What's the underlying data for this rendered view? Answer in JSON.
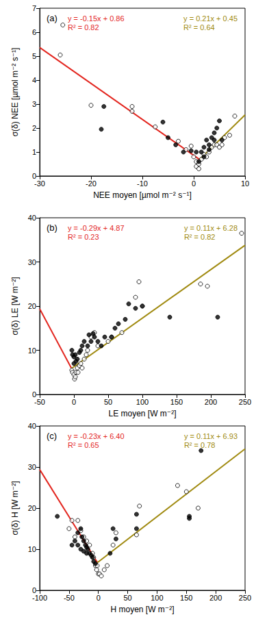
{
  "chart_data": [
    {
      "type": "scatter",
      "title": "(a)",
      "xlabel": "NEE moyen [µmol m⁻² s⁻¹]",
      "ylabel": "σ(δ) NEE [µmol m⁻² s⁻¹]",
      "xlim": [
        -30,
        10
      ],
      "xticks": [
        -30,
        -20,
        -10,
        0,
        10
      ],
      "ylim": [
        0,
        7
      ],
      "yticks": [
        0,
        1,
        2,
        3,
        4,
        5,
        6,
        7
      ],
      "grid": false,
      "annotations": [
        {
          "text": "y = -0.15x + 0.86\nR² = 0.82",
          "color": "#e3261f"
        },
        {
          "text": "y = 0.21x + 0.45\nR² = 0.64",
          "color": "#a08a10"
        }
      ],
      "series": [
        {
          "type": "scatter",
          "marker": "open_circle",
          "color": "#000000",
          "x": [
            -25.5,
            -26,
            -20,
            -12,
            -12,
            -7.5,
            -3,
            -1.5,
            -0.5,
            0,
            0.5,
            0.5,
            1,
            1.5,
            2,
            2.5,
            3,
            3.5,
            4,
            4.5,
            5,
            5.5,
            6,
            7,
            8,
            1
          ],
          "values": [
            6.3,
            5.05,
            2.95,
            2.9,
            2.7,
            2.05,
            1.45,
            1.1,
            1.25,
            0.8,
            0.6,
            0.4,
            0.5,
            0.7,
            0.9,
            0.8,
            1.0,
            1.2,
            1.3,
            1.3,
            1.2,
            1.3,
            1.6,
            1.7,
            2.5,
            0.3
          ]
        },
        {
          "type": "scatter",
          "marker": "filled_circle",
          "color": "#000000",
          "x": [
            -18,
            -17.5,
            -6,
            -5,
            -3.5,
            -2,
            -0.5,
            0.5,
            1,
            1.5,
            2,
            2.5,
            3,
            3.5,
            4,
            4.5,
            5,
            2,
            3,
            4,
            5.5
          ],
          "values": [
            1.95,
            2.9,
            2.25,
            1.6,
            1.3,
            1.0,
            1.05,
            1.0,
            0.6,
            1.0,
            1.2,
            1.5,
            1.3,
            1.6,
            1.8,
            2.0,
            2.3,
            0.8,
            1.1,
            1.5,
            1.5
          ]
        },
        {
          "type": "line",
          "color": "#e3261f",
          "x": [
            -30,
            1.14
          ],
          "values": [
            5.36,
            0.69
          ]
        },
        {
          "type": "line",
          "color": "#a08a10",
          "x": [
            1.14,
            10
          ],
          "values": [
            0.69,
            2.55
          ]
        }
      ]
    },
    {
      "type": "scatter",
      "title": "(b)",
      "xlabel": "LE moyen [W m⁻²]",
      "ylabel": "σ(δ) LE [W m⁻²]",
      "xlim": [
        -50,
        250
      ],
      "xticks": [
        -50,
        0,
        50,
        100,
        150,
        200,
        250
      ],
      "ylim": [
        0,
        40
      ],
      "yticks": [
        0,
        10,
        20,
        30,
        40
      ],
      "grid": false,
      "annotations": [
        {
          "text": "y = -0.29x + 4.87\nR² = 0.23",
          "color": "#e3261f"
        },
        {
          "text": "y = 0.11x + 6.28\nR² = 0.82",
          "color": "#a08a10"
        }
      ],
      "series": [
        {
          "type": "scatter",
          "marker": "open_circle",
          "color": "#000000",
          "x": [
            -3,
            -2,
            0,
            1,
            2,
            3,
            5,
            8,
            10,
            15,
            18,
            20,
            25,
            30,
            35,
            50,
            55,
            70,
            90,
            95,
            100,
            185,
            195,
            245,
            12,
            6
          ],
          "values": [
            5.5,
            5,
            4.5,
            3.5,
            4,
            5,
            6,
            6.5,
            7,
            8,
            9,
            10,
            13,
            14,
            11,
            12,
            13,
            14,
            22,
            25.5,
            20,
            25,
            24.5,
            36.5,
            6,
            5
          ]
        },
        {
          "type": "scatter",
          "marker": "filled_circle",
          "color": "#000000",
          "x": [
            -3,
            -2,
            0,
            2,
            5,
            8,
            10,
            12,
            15,
            20,
            22,
            25,
            28,
            30,
            35,
            40,
            45,
            55,
            60,
            65,
            75,
            80,
            90,
            100,
            140,
            210,
            0,
            3
          ],
          "values": [
            10,
            9,
            8.5,
            9,
            8,
            9.5,
            10,
            11,
            12,
            11,
            13.5,
            12,
            13.8,
            13,
            12,
            11,
            13,
            13,
            15,
            16,
            17,
            20.5,
            19.5,
            20,
            17.5,
            17.5,
            7,
            7.5
          ]
        },
        {
          "type": "line",
          "color": "#e3261f",
          "x": [
            -50,
            -3.5
          ],
          "values": [
            19.37,
            5.89
          ]
        },
        {
          "type": "line",
          "color": "#a08a10",
          "x": [
            -3.5,
            250
          ],
          "values": [
            5.89,
            33.78
          ]
        }
      ]
    },
    {
      "type": "scatter",
      "title": "(c)",
      "xlabel": "H moyen [W m⁻²]",
      "ylabel": "σ(δ) H [W m⁻²]",
      "xlim": [
        -100,
        250
      ],
      "xticks": [
        -100,
        -50,
        0,
        50,
        100,
        150,
        200,
        250
      ],
      "ylim": [
        0,
        40
      ],
      "yticks": [
        0,
        10,
        20,
        30,
        40
      ],
      "grid": false,
      "annotations": [
        {
          "text": "y = -0.23x + 6.40\nR² = 0.65",
          "color": "#e3261f"
        },
        {
          "text": "y = 0.11x + 6.93\nR² = 0.78",
          "color": "#a08a10"
        }
      ],
      "series": [
        {
          "type": "scatter",
          "marker": "open_circle",
          "color": "#000000",
          "x": [
            -50,
            -45,
            -40,
            -35,
            -30,
            -25,
            -20,
            -15,
            -10,
            -8,
            -5,
            -3,
            0,
            2,
            5,
            -2,
            10,
            15,
            25,
            30,
            65,
            70,
            135,
            150,
            170
          ],
          "values": [
            15,
            17,
            13,
            17,
            14.5,
            13,
            12,
            11,
            9,
            8,
            6,
            5,
            4,
            4,
            3.5,
            6,
            5,
            6,
            11,
            14,
            13.5,
            20.5,
            25.5,
            24,
            20
          ]
        },
        {
          "type": "scatter",
          "marker": "filled_circle",
          "color": "#000000",
          "x": [
            -70,
            -45,
            -40,
            -35,
            -30,
            -28,
            -25,
            -22,
            -20,
            -18,
            -15,
            -12,
            -10,
            -8,
            -5,
            -30,
            -25,
            -20,
            -35,
            25,
            30,
            65,
            65,
            155,
            155,
            175,
            20
          ],
          "values": [
            18,
            11,
            12,
            14,
            15,
            13,
            12,
            11,
            10.5,
            10,
            9,
            8.5,
            8,
            7,
            6.5,
            10,
            9.5,
            9,
            11,
            15,
            12.5,
            15,
            18.5,
            18,
            17.5,
            34,
            9
          ]
        },
        {
          "type": "line",
          "color": "#e3261f",
          "x": [
            -100,
            -1.56
          ],
          "values": [
            29.4,
            6.76
          ]
        },
        {
          "type": "line",
          "color": "#a08a10",
          "x": [
            -1.56,
            250
          ],
          "values": [
            6.76,
            34.43
          ]
        }
      ]
    }
  ]
}
